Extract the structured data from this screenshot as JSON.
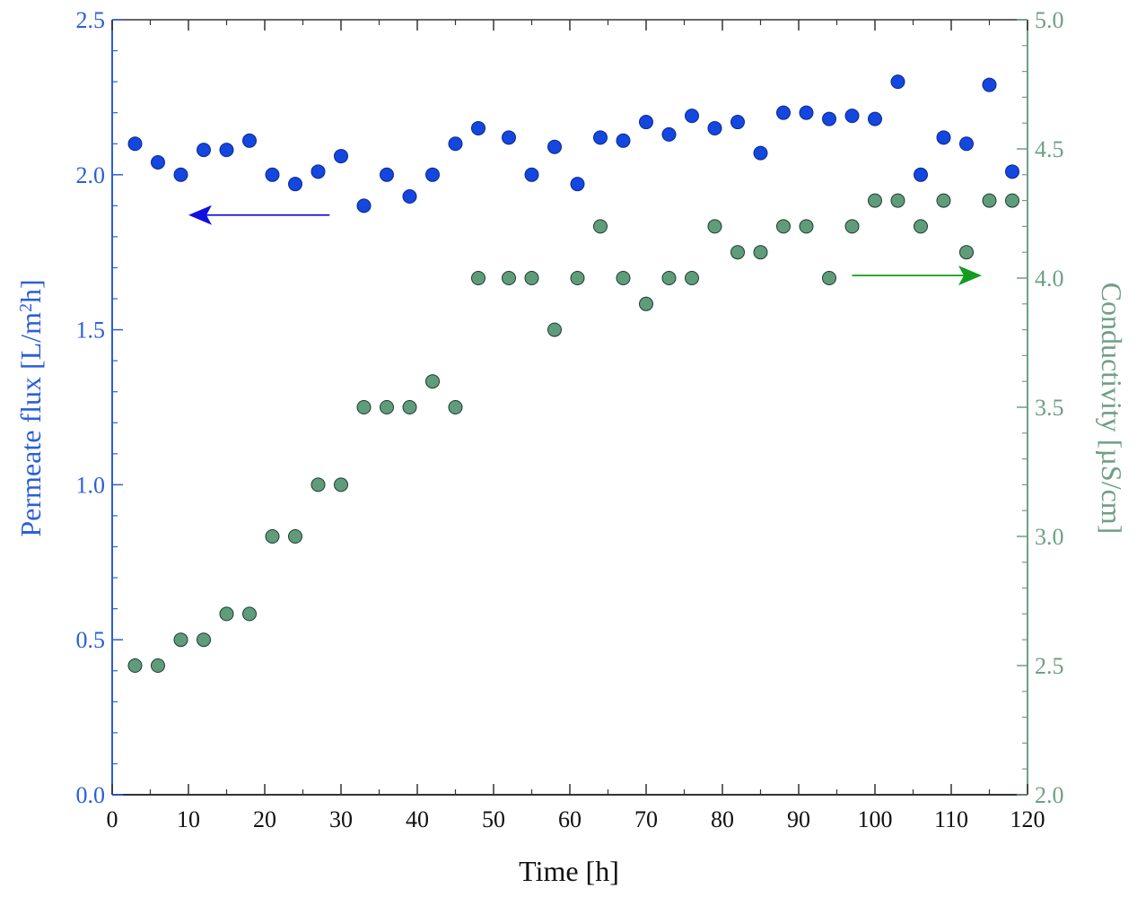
{
  "chart_data": {
    "type": "scatter",
    "title": "",
    "xlabel": "Time [h]",
    "ylabel_left": {
      "prefix": "Permeate flux [L/m",
      "sup": "2",
      "suffix": "h]"
    },
    "ylabel_right": "Conductivity [µS/cm]",
    "xlim": [
      0,
      120
    ],
    "ylim_left": [
      0.0,
      2.5
    ],
    "ylim_right": [
      2.0,
      5.0
    ],
    "x_ticks": [
      "0",
      "10",
      "20",
      "30",
      "40",
      "50",
      "60",
      "70",
      "80",
      "90",
      "100",
      "110",
      "120"
    ],
    "y_left_ticks": [
      "0.0",
      "0.5",
      "1.0",
      "1.5",
      "2.0",
      "2.5"
    ],
    "y_right_ticks": [
      "2.0",
      "2.5",
      "3.0",
      "3.5",
      "4.0",
      "4.5",
      "5.0"
    ],
    "colors": {
      "left_axis": "#2b5fd9",
      "right_axis": "#6f9f85",
      "flux_marker": "#1446e0",
      "cond_marker": "#5e9c7c",
      "flux_arrow": "#1010e0",
      "cond_arrow": "#149c1e"
    },
    "series": [
      {
        "name": "Permeate flux",
        "axis": "left",
        "x": [
          3,
          6,
          9,
          12,
          15,
          18,
          21,
          24,
          27,
          30,
          33,
          36,
          39,
          42,
          45,
          48,
          52,
          55,
          58,
          61,
          64,
          67,
          70,
          73,
          76,
          79,
          82,
          85,
          88,
          91,
          94,
          97,
          100,
          103,
          106,
          109,
          112,
          115,
          118
        ],
        "y": [
          2.1,
          2.04,
          2.0,
          2.08,
          2.08,
          2.11,
          2.0,
          1.97,
          2.01,
          2.06,
          1.9,
          2.0,
          1.93,
          2.0,
          2.1,
          2.15,
          2.12,
          2.0,
          2.09,
          1.97,
          2.12,
          2.11,
          2.17,
          2.13,
          2.19,
          2.15,
          2.17,
          2.07,
          2.2,
          2.2,
          2.18,
          2.19,
          2.18,
          2.3,
          2.0,
          2.12,
          2.1,
          2.29,
          2.01
        ]
      },
      {
        "name": "Conductivity",
        "axis": "right",
        "x": [
          3,
          6,
          9,
          12,
          15,
          18,
          21,
          24,
          27,
          30,
          33,
          36,
          39,
          42,
          45,
          48,
          52,
          55,
          58,
          61,
          64,
          67,
          70,
          73,
          76,
          79,
          82,
          85,
          88,
          91,
          94,
          97,
          100,
          103,
          106,
          109,
          112,
          115,
          118
        ],
        "y": [
          2.5,
          2.5,
          2.6,
          2.6,
          2.7,
          2.7,
          3.0,
          3.0,
          3.2,
          3.2,
          3.5,
          3.5,
          3.5,
          3.6,
          3.5,
          4.0,
          4.0,
          4.0,
          3.8,
          4.0,
          4.2,
          4.0,
          3.9,
          4.0,
          4.0,
          4.2,
          4.1,
          4.1,
          4.2,
          4.2,
          4.0,
          4.2,
          4.3,
          4.3,
          4.2,
          4.3,
          4.1,
          4.3,
          4.3
        ]
      }
    ],
    "annotations": [
      {
        "type": "arrow",
        "series": "Permeate flux",
        "direction": "left",
        "x_from": 28.5,
        "x_to": 10,
        "y": 1.87,
        "axis": "left"
      },
      {
        "type": "arrow",
        "series": "Conductivity",
        "direction": "right",
        "x_from": 97,
        "x_to": 114,
        "y": 4.01,
        "axis": "right"
      }
    ]
  }
}
